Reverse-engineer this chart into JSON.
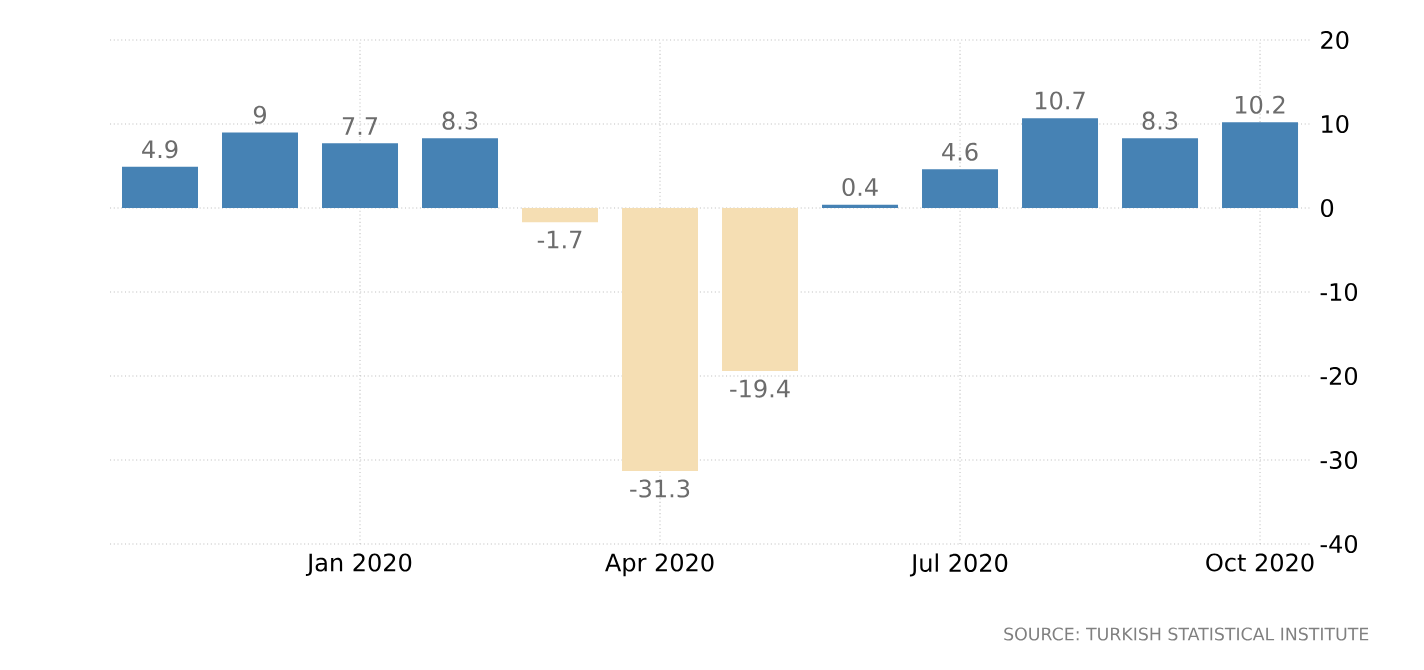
{
  "chart_data": {
    "type": "bar",
    "categories": [
      null,
      null,
      "Jan 2020",
      null,
      null,
      "Apr 2020",
      null,
      null,
      "Jul 2020",
      null,
      null,
      "Oct 2020"
    ],
    "values": [
      4.9,
      9,
      7.7,
      8.3,
      -1.7,
      -31.3,
      -19.4,
      0.4,
      4.6,
      10.7,
      8.3,
      10.2
    ],
    "colors": [
      "#4682b4",
      "#4682b4",
      "#4682b4",
      "#4682b4",
      "#f5deb3",
      "#f5deb3",
      "#f5deb3",
      "#4682b4",
      "#4682b4",
      "#4682b4",
      "#4682b4",
      "#4682b4"
    ],
    "ylim": [
      -40,
      20
    ],
    "yticks": [
      -40,
      -30,
      -20,
      -10,
      0,
      10,
      20
    ],
    "grid": true,
    "data_labels": true,
    "annotations": [
      "SOURCE: TURKISH STATISTICAL INSTITUTE"
    ]
  }
}
